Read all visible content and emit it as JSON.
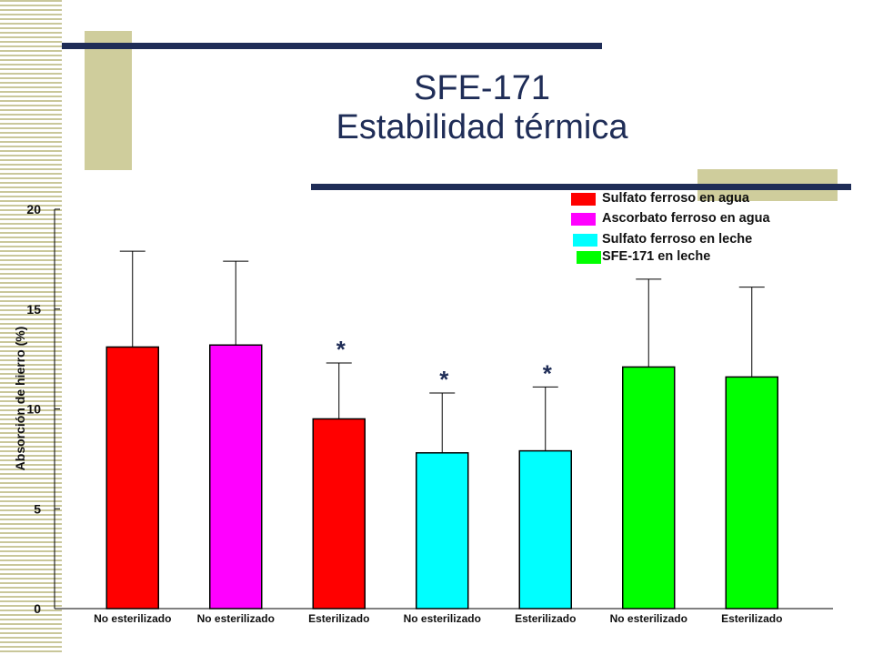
{
  "slide": {
    "title_line1": "SFE-171",
    "title_line2": "Estabilidad térmica"
  },
  "colors": {
    "title": "#1f2d57",
    "decoration": "#cfcd9c"
  },
  "chart_data": {
    "type": "bar",
    "ylabel": "Absorción de hierro (%)",
    "ylim": [
      0,
      20
    ],
    "yticks": [
      0,
      5,
      10,
      15,
      20
    ],
    "grid": false,
    "legend_placement": "top-right",
    "legend": [
      {
        "name": "Sulfato ferroso en agua",
        "color": "#ff0000"
      },
      {
        "name": "Ascorbato ferroso en agua",
        "color": "#ff00ff"
      },
      {
        "name": "Sulfato ferroso en leche",
        "color": "#00ffff"
      },
      {
        "name": "SFE-171 en leche",
        "color": "#00ff00"
      }
    ],
    "bars": [
      {
        "category": "No esterilizado",
        "value": 13.1,
        "error_top": 17.9,
        "color": "#ff0000",
        "asterisk": false
      },
      {
        "category": "No esterilizado",
        "value": 13.2,
        "error_top": 17.4,
        "color": "#ff00ff",
        "asterisk": false
      },
      {
        "category": "Esterilizado",
        "value": 9.5,
        "error_top": 12.3,
        "color": "#ff0000",
        "asterisk": true
      },
      {
        "category": "No esterilizado",
        "value": 7.8,
        "error_top": 10.8,
        "color": "#00ffff",
        "asterisk": true
      },
      {
        "category": "Esterilizado",
        "value": 7.9,
        "error_top": 11.1,
        "color": "#00ffff",
        "asterisk": true
      },
      {
        "category": "No esterilizado",
        "value": 12.1,
        "error_top": 16.5,
        "color": "#00ff00",
        "asterisk": false
      },
      {
        "category": "Esterilizado",
        "value": 11.6,
        "error_top": 16.1,
        "color": "#00ff00",
        "asterisk": false
      }
    ],
    "annotation": "*"
  }
}
